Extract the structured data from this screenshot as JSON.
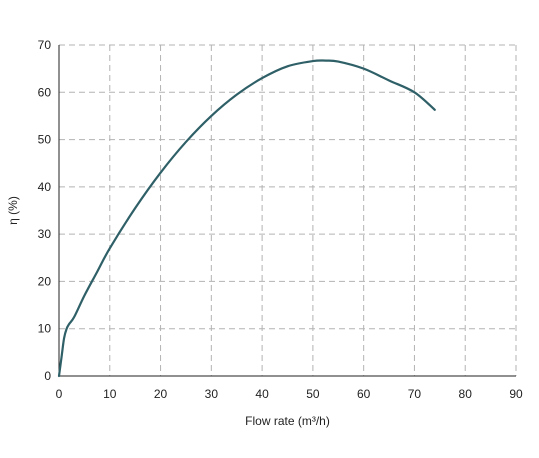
{
  "chart_data": {
    "type": "line",
    "title": "",
    "xlabel": "Flow rate (m³/h)",
    "ylabel": "η (%)",
    "xlim": [
      0,
      90
    ],
    "ylim": [
      0,
      70
    ],
    "xticks": [
      0,
      10,
      20,
      30,
      40,
      50,
      60,
      70,
      80,
      90
    ],
    "yticks": [
      0,
      10,
      20,
      30,
      40,
      50,
      60,
      70
    ],
    "grid": true,
    "legend": "none",
    "series": [
      {
        "color": "#2f6068",
        "x": [
          0,
          0.5,
          1,
          1.5,
          2,
          3,
          5,
          7.5,
          10,
          15,
          20,
          25,
          30,
          35,
          40,
          45,
          50,
          52.5,
          55,
          60,
          65,
          70,
          74
        ],
        "y": [
          0,
          4,
          8,
          10,
          11,
          12.5,
          17,
          22,
          27,
          35.5,
          43,
          49.5,
          55,
          59.5,
          63,
          65.5,
          66.6,
          66.7,
          66.5,
          65,
          62.5,
          60,
          56.3
        ]
      }
    ]
  }
}
